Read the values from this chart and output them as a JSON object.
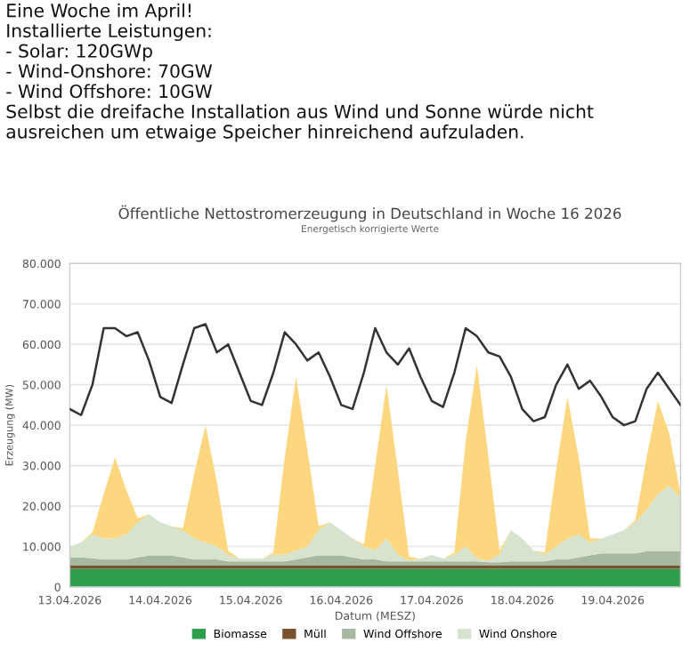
{
  "chart_data": {
    "type": "area",
    "stacked": true,
    "title": "Öffentliche Nettostromerzeugung in Deutschland in Woche 16 2026",
    "subtitle": "Energetisch korrigierte Werte",
    "xlabel": "Datum (MESZ)",
    "ylabel": "Erzeugung (MW)",
    "annotations": [
      "Eine Woche im April!\nInstallierte Leistungen:\n- Solar: 120GWp\n- Wind-Onshore: 70GW\n- Wind Offshore: 10GW\nSelbst die dreifache Installation aus Wind und Sonne würde nicht\nausreichen um etwaige Speicher hinreichend aufzuladen."
    ],
    "x": [
      "2026-04-13T00:00",
      "2026-04-13T03:00",
      "2026-04-13T06:00",
      "2026-04-13T09:00",
      "2026-04-13T12:00",
      "2026-04-13T15:00",
      "2026-04-13T18:00",
      "2026-04-13T21:00",
      "2026-04-14T00:00",
      "2026-04-14T03:00",
      "2026-04-14T06:00",
      "2026-04-14T09:00",
      "2026-04-14T12:00",
      "2026-04-14T15:00",
      "2026-04-14T18:00",
      "2026-04-14T21:00",
      "2026-04-15T00:00",
      "2026-04-15T03:00",
      "2026-04-15T06:00",
      "2026-04-15T09:00",
      "2026-04-15T12:00",
      "2026-04-15T15:00",
      "2026-04-15T18:00",
      "2026-04-15T21:00",
      "2026-04-16T00:00",
      "2026-04-16T03:00",
      "2026-04-16T06:00",
      "2026-04-16T09:00",
      "2026-04-16T12:00",
      "2026-04-16T15:00",
      "2026-04-16T18:00",
      "2026-04-16T21:00",
      "2026-04-17T00:00",
      "2026-04-17T03:00",
      "2026-04-17T06:00",
      "2026-04-17T09:00",
      "2026-04-17T12:00",
      "2026-04-17T15:00",
      "2026-04-17T18:00",
      "2026-04-17T21:00",
      "2026-04-18T00:00",
      "2026-04-18T03:00",
      "2026-04-18T06:00",
      "2026-04-18T09:00",
      "2026-04-18T12:00",
      "2026-04-18T15:00",
      "2026-04-18T18:00",
      "2026-04-18T21:00",
      "2026-04-19T00:00",
      "2026-04-19T03:00",
      "2026-04-19T06:00",
      "2026-04-19T09:00",
      "2026-04-19T12:00",
      "2026-04-19T15:00",
      "2026-04-19T18:00"
    ],
    "xlim": [
      "2026-04-13T00:00",
      "2026-04-19T18:00"
    ],
    "xticks": [
      {
        "value": "2026-04-13",
        "label": "13.04.2026"
      },
      {
        "value": "2026-04-14",
        "label": "14.04.2026"
      },
      {
        "value": "2026-04-15",
        "label": "15.04.2026"
      },
      {
        "value": "2026-04-16",
        "label": "16.04.2026"
      },
      {
        "value": "2026-04-17",
        "label": "17.04.2026"
      },
      {
        "value": "2026-04-18",
        "label": "18.04.2026"
      },
      {
        "value": "2026-04-19",
        "label": "19.04.2026"
      }
    ],
    "ylim": [
      0,
      80000
    ],
    "yticks": [
      {
        "value": 0,
        "label": "0"
      },
      {
        "value": 10000,
        "label": "10.000"
      },
      {
        "value": 20000,
        "label": "20.000"
      },
      {
        "value": 30000,
        "label": "30.000"
      },
      {
        "value": 40000,
        "label": "40.000"
      },
      {
        "value": 50000,
        "label": "50.000"
      },
      {
        "value": 60000,
        "label": "60.000"
      },
      {
        "value": 70000,
        "label": "70.000"
      },
      {
        "value": 80000,
        "label": "80.000"
      }
    ],
    "grid": "y",
    "legend": "bottom",
    "series": [
      {
        "name": "Biomasse",
        "color": "#2e9e4a",
        "values": [
          4500,
          4500,
          4500,
          4500,
          4500,
          4500,
          4500,
          4500,
          4500,
          4500,
          4500,
          4500,
          4500,
          4500,
          4500,
          4500,
          4500,
          4500,
          4500,
          4500,
          4500,
          4500,
          4500,
          4500,
          4500,
          4500,
          4500,
          4500,
          4500,
          4500,
          4500,
          4500,
          4500,
          4500,
          4500,
          4500,
          4500,
          4500,
          4500,
          4500,
          4500,
          4500,
          4500,
          4500,
          4500,
          4500,
          4500,
          4500,
          4500,
          4500,
          4500,
          4500,
          4500,
          4500,
          4500
        ]
      },
      {
        "name": "Müll",
        "color": "#7a5230",
        "values": [
          800,
          800,
          800,
          800,
          800,
          800,
          800,
          800,
          800,
          800,
          800,
          800,
          800,
          800,
          800,
          800,
          800,
          800,
          800,
          800,
          800,
          800,
          800,
          800,
          800,
          800,
          800,
          800,
          800,
          800,
          800,
          800,
          800,
          800,
          800,
          800,
          800,
          800,
          800,
          800,
          800,
          800,
          800,
          800,
          800,
          800,
          800,
          800,
          800,
          800,
          800,
          800,
          800,
          800,
          800
        ]
      },
      {
        "name": "Wind Offshore",
        "color": "#a9b8a0",
        "values": [
          2000,
          2000,
          1800,
          1500,
          1500,
          1500,
          2000,
          2500,
          2500,
          2500,
          2000,
          1500,
          1500,
          1500,
          1000,
          1000,
          1000,
          1000,
          1000,
          1000,
          1500,
          2000,
          2500,
          2500,
          2500,
          2000,
          1500,
          1500,
          1000,
          1000,
          1000,
          1000,
          1000,
          1000,
          1000,
          1000,
          1000,
          800,
          800,
          1000,
          1000,
          1000,
          1000,
          1500,
          1500,
          2000,
          2500,
          3000,
          3000,
          3000,
          3000,
          3500,
          3500,
          3500,
          3500
        ]
      },
      {
        "name": "Wind Onshore",
        "color": "#d5e3cf",
        "values": [
          2700,
          3700,
          5900,
          5200,
          5200,
          6200,
          8700,
          10200,
          8200,
          7200,
          6700,
          5200,
          4200,
          3200,
          1700,
          700,
          700,
          700,
          1700,
          1700,
          2200,
          2700,
          6200,
          8200,
          6200,
          4700,
          3200,
          2200,
          5700,
          1700,
          200,
          700,
          1700,
          700,
          1700,
          3700,
          700,
          400,
          1900,
          7700,
          5700,
          2700,
          1700,
          3200,
          5200,
          5700,
          3200,
          3700,
          4700,
          5700,
          7700,
          10200,
          14200,
          16200,
          13200
        ]
      },
      {
        "color": "#fcd77f",
        "values": [
          0,
          0,
          500,
          11000,
          20000,
          11000,
          1000,
          0,
          0,
          0,
          500,
          16000,
          29000,
          16000,
          1000,
          0,
          0,
          0,
          500,
          24000,
          43000,
          24000,
          1000,
          0,
          0,
          0,
          500,
          21000,
          38000,
          21000,
          1000,
          0,
          0,
          0,
          500,
          26000,
          48000,
          26000,
          1000,
          0,
          0,
          0,
          500,
          19000,
          35000,
          19000,
          1000,
          0,
          0,
          0,
          500,
          13000,
          23000,
          13000,
          1000
        ]
      },
      {
        "type": "line",
        "color": "#333333",
        "values": [
          44000,
          42500,
          50000,
          64000,
          64000,
          62000,
          63000,
          56000,
          47000,
          45500,
          55000,
          64000,
          65000,
          58000,
          60000,
          53000,
          46000,
          45000,
          53000,
          63000,
          60000,
          56000,
          58000,
          52000,
          45000,
          44000,
          53000,
          64000,
          58000,
          55000,
          59000,
          52000,
          46000,
          44500,
          53000,
          64000,
          62000,
          58000,
          57000,
          52000,
          44000,
          41000,
          42000,
          50000,
          55000,
          49000,
          51000,
          47000,
          42000,
          40000,
          41000,
          49000,
          53000,
          49000,
          45000
        ]
      }
    ]
  }
}
